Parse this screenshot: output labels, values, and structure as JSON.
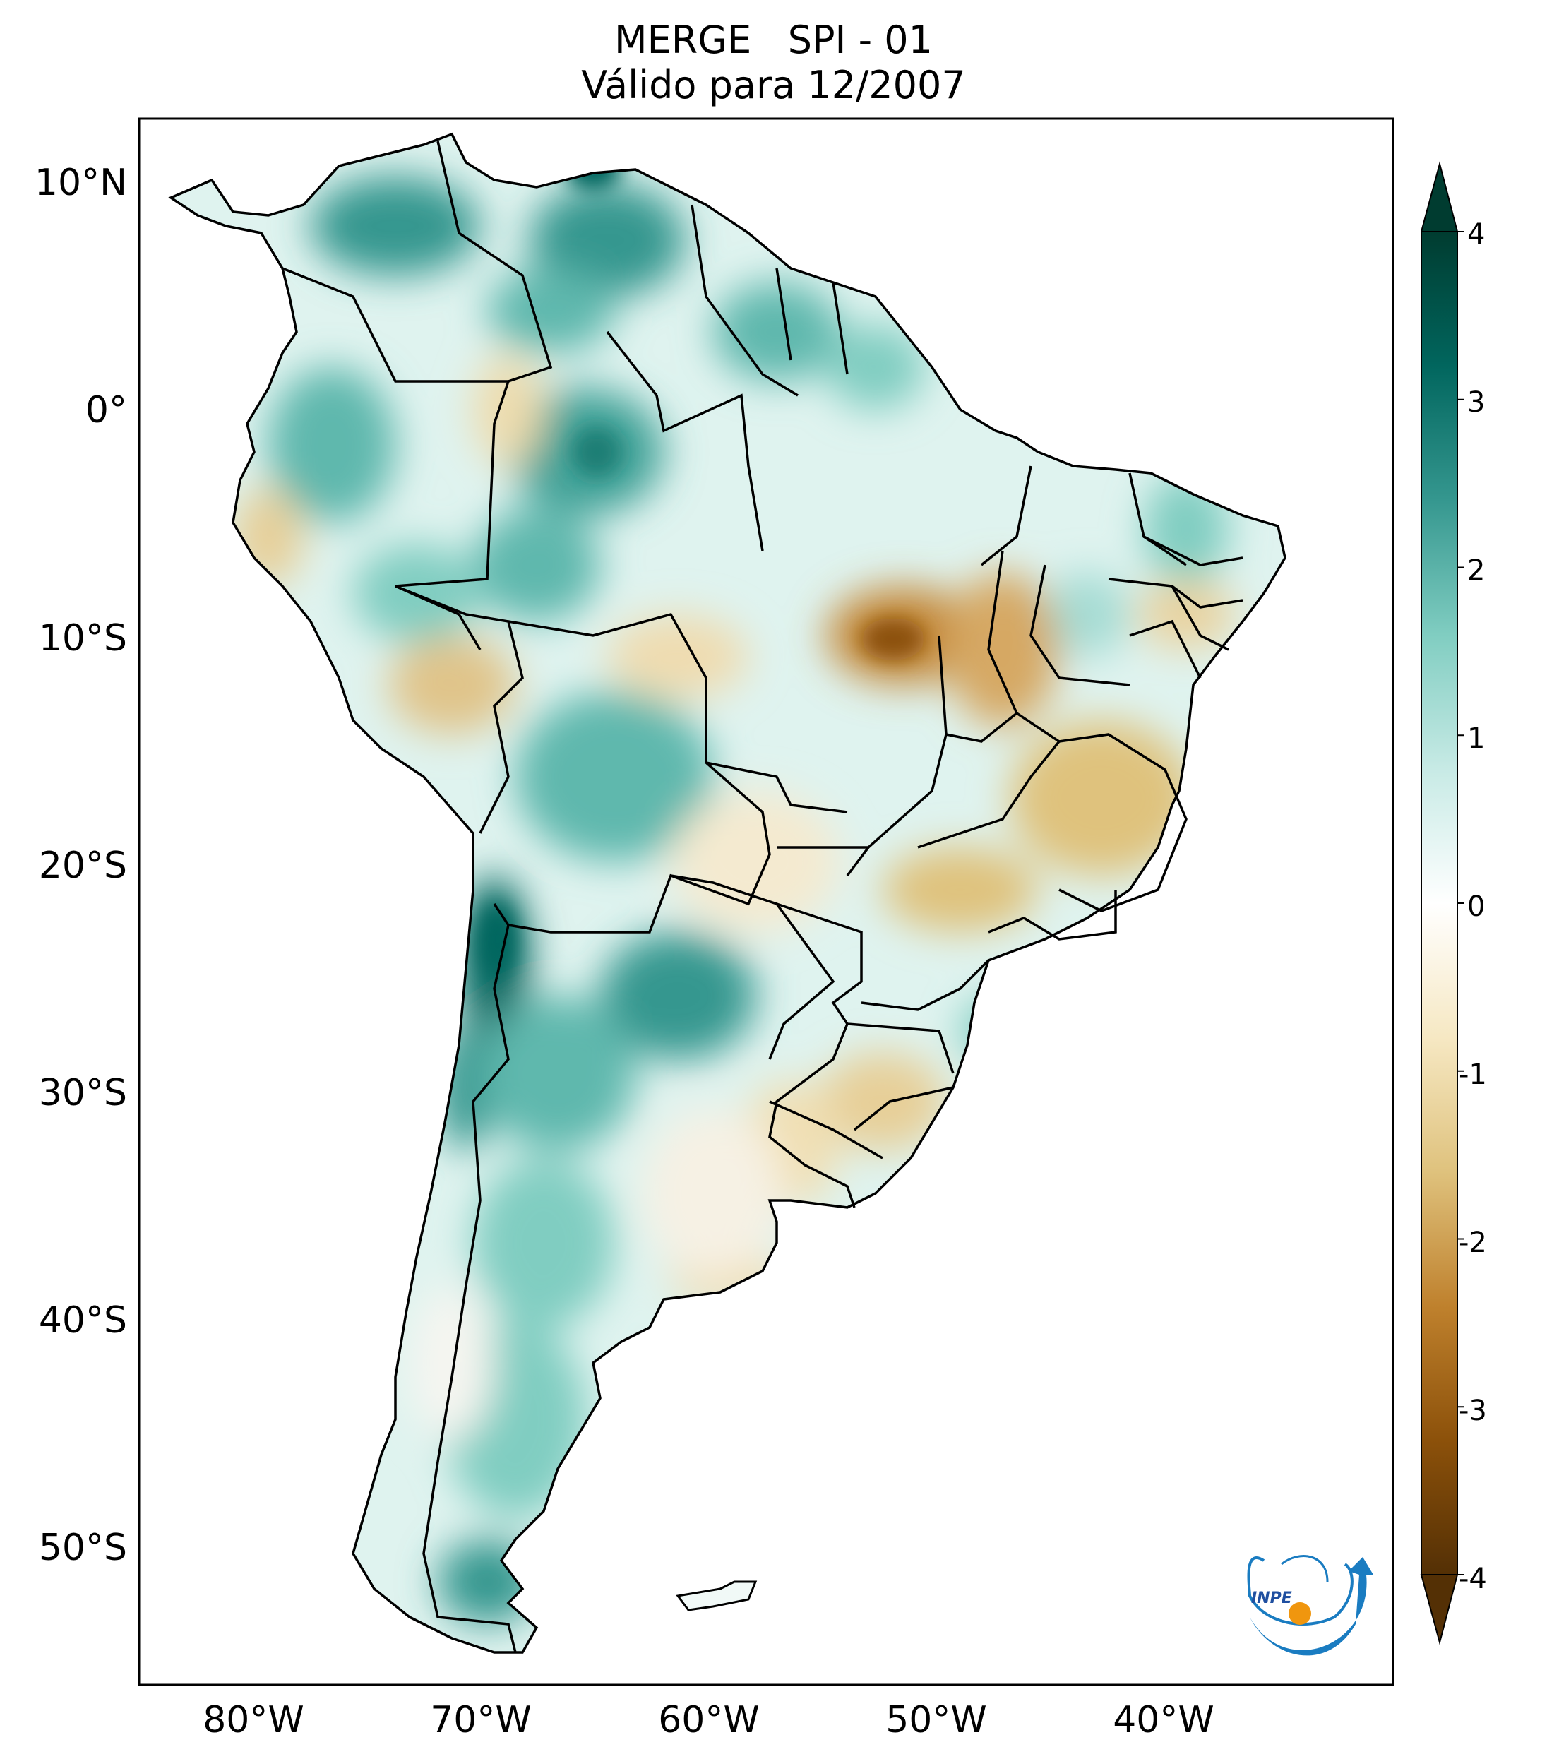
{
  "title": {
    "line1_left": "MERGE",
    "line1_right": "SPI - 01",
    "line2": "Válido para 12/2007"
  },
  "map": {
    "region": "South America",
    "lon_range": [
      -85,
      -30
    ],
    "lat_range": [
      -56,
      13
    ],
    "lat_ticks": [
      {
        "value": 10,
        "label": "10°N"
      },
      {
        "value": 0,
        "label": "0°"
      },
      {
        "value": -10,
        "label": "10°S"
      },
      {
        "value": -20,
        "label": "20°S"
      },
      {
        "value": -30,
        "label": "30°S"
      },
      {
        "value": -40,
        "label": "40°S"
      },
      {
        "value": -50,
        "label": "50°S"
      }
    ],
    "lon_ticks": [
      {
        "value": -80,
        "label": "80°W"
      },
      {
        "value": -70,
        "label": "70°W"
      },
      {
        "value": -60,
        "label": "60°W"
      },
      {
        "value": -50,
        "label": "50°W"
      },
      {
        "value": -40,
        "label": "40°W"
      }
    ]
  },
  "colorbar": {
    "min": -4,
    "max": 4,
    "extend": "both",
    "colormap": [
      "#543005",
      "#8c510a",
      "#bf812d",
      "#dfc27d",
      "#f6e8c3",
      "#ffffff",
      "#c7eae5",
      "#80cdc1",
      "#35978f",
      "#01665e",
      "#003c30"
    ],
    "ticks": [
      "4",
      "3",
      "2",
      "1",
      "0",
      "-1",
      "-2",
      "-3",
      "-4"
    ]
  },
  "logo": {
    "text": "INPE"
  }
}
